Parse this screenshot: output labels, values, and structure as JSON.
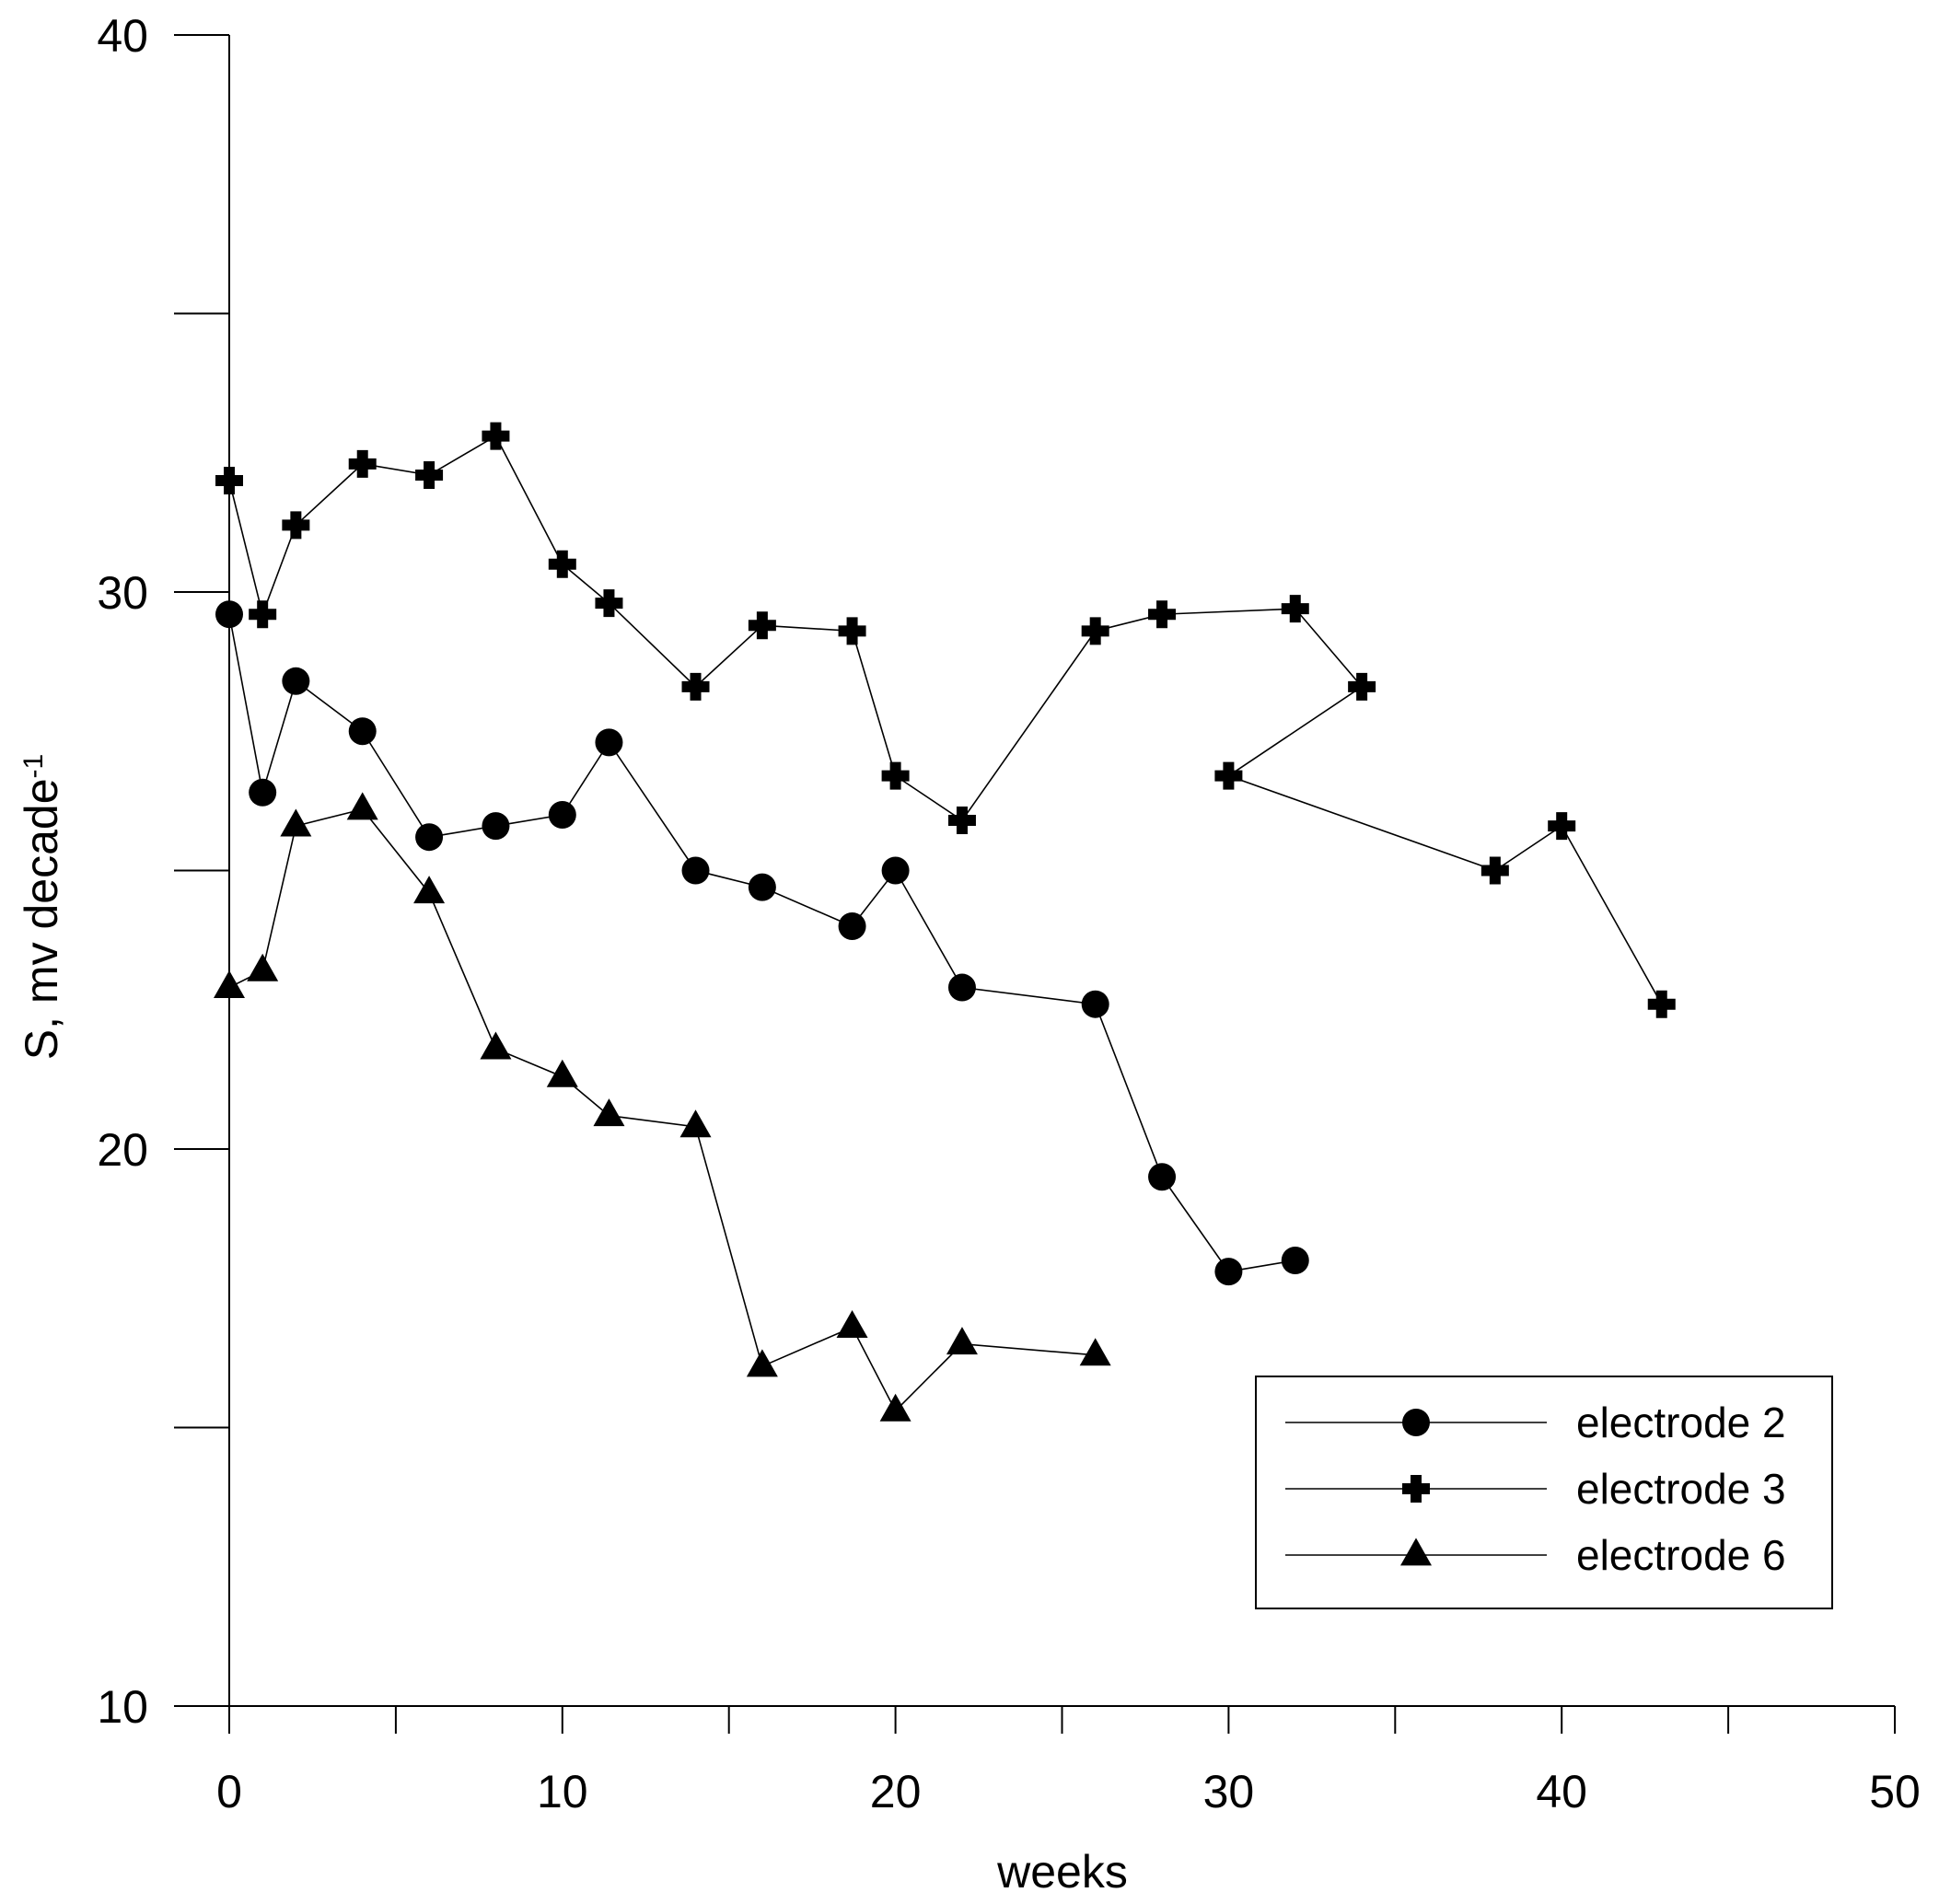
{
  "chart_data": {
    "type": "line",
    "xlabel": "weeks",
    "ylabel": "S, mv decade",
    "ylabel_superscript": "-1",
    "xlim": [
      0,
      50
    ],
    "ylim": [
      10,
      40
    ],
    "x_ticks": [
      0,
      10,
      20,
      30,
      40,
      50
    ],
    "x_minor_ticks": [
      5,
      15,
      25,
      35,
      45
    ],
    "y_ticks": [
      10,
      20,
      30,
      40
    ],
    "y_minor_ticks": [
      15,
      25,
      35
    ],
    "grid": false,
    "legend_position": "bottom-right",
    "series": [
      {
        "name": "electrode 2",
        "marker": "circle",
        "x": [
          0,
          1,
          2,
          4,
          6,
          8,
          10,
          11.4,
          14,
          16,
          18.7,
          20,
          22,
          26,
          28,
          30,
          32
        ],
        "y": [
          29.6,
          26.4,
          28.4,
          27.5,
          25.6,
          25.8,
          26.0,
          27.3,
          25.0,
          24.7,
          24.0,
          25.0,
          22.9,
          22.6,
          19.5,
          17.8,
          18.0
        ]
      },
      {
        "name": "electrode 3",
        "marker": "plus",
        "x": [
          0,
          1,
          2,
          4,
          6,
          8,
          10,
          11.4,
          14,
          16,
          18.7,
          20,
          22,
          26,
          28,
          32,
          34,
          30,
          38,
          40,
          43
        ],
        "y": [
          32.0,
          29.6,
          31.2,
          32.3,
          32.1,
          32.8,
          30.5,
          29.8,
          28.3,
          29.4,
          29.3,
          26.7,
          25.9,
          29.3,
          29.6,
          29.7,
          28.3,
          26.7,
          25.0,
          25.8,
          22.6
        ]
      },
      {
        "name": "electrode 6",
        "marker": "triangle",
        "x": [
          0,
          1,
          2,
          4,
          6,
          8,
          10,
          11.4,
          14,
          16,
          18.7,
          20,
          22,
          26
        ],
        "y": [
          22.9,
          23.2,
          25.8,
          26.1,
          24.6,
          21.8,
          21.3,
          20.6,
          20.4,
          16.1,
          16.8,
          15.3,
          16.5,
          16.3
        ]
      }
    ]
  }
}
